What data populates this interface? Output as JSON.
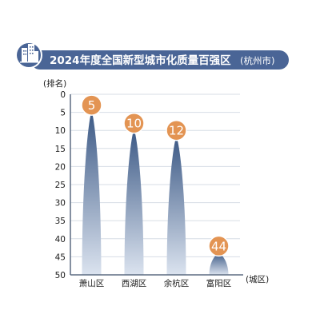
{
  "colors": {
    "title_bar": "#4a6596",
    "peak_dark": "#3d5a86",
    "peak_light": "#dbe3ef",
    "badge_fill": "#e39453",
    "badge_stroke": "#ffffff",
    "axis": "#5d6c82",
    "grid": "#d7dde6",
    "text": "#1c1c1c"
  },
  "title": {
    "icon": "city-buildings-icon",
    "main": "2024年度全国新型城市化质量百强区",
    "suffix": "(杭州市)"
  },
  "chart_data": {
    "type": "bar",
    "title": "2024年度全国新型城市化质量百强区(杭州市)",
    "ylabel": "(排名)",
    "xlabel": "(城区)",
    "ylim": [
      0,
      50
    ],
    "y_inverted": true,
    "y_ticks": [
      "0",
      "5",
      "10",
      "15",
      "20",
      "25",
      "30",
      "35",
      "40",
      "45",
      "50"
    ],
    "grid": true,
    "categories": [
      "萧山区",
      "西湖区",
      "余杭区",
      "富阳区"
    ],
    "values": [
      5,
      10,
      12,
      44
    ],
    "value_labels": [
      "5",
      "10",
      "12",
      "44"
    ]
  }
}
